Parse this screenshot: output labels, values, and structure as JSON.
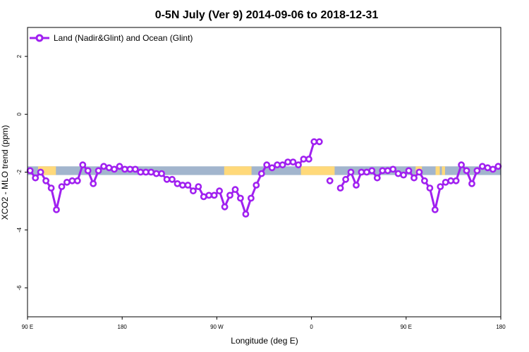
{
  "chart_data": {
    "type": "line",
    "title": "0-5N July (Ver 9)   2014-09-06 to 2018-12-31",
    "xlabel": "Longitude (deg E)",
    "ylabel": "XCO2 - MLO trend (ppm)",
    "xlim": [
      90,
      540
    ],
    "ylim": [
      -7,
      3
    ],
    "x_ticks": [
      {
        "value": 90,
        "label": "90 E"
      },
      {
        "value": 180,
        "label": "180"
      },
      {
        "value": 270,
        "label": "90 W"
      },
      {
        "value": 360,
        "label": "0"
      },
      {
        "value": 450,
        "label": "90 E"
      },
      {
        "value": 540,
        "label": "180"
      }
    ],
    "y_ticks": [
      {
        "value": 2,
        "label": "2"
      },
      {
        "value": 0,
        "label": "0"
      },
      {
        "value": -2,
        "label": "-2"
      },
      {
        "value": -4,
        "label": "-4"
      },
      {
        "value": -6,
        "label": "-6"
      }
    ],
    "legend": {
      "position": "top-left",
      "label": "Land (Nadir&Glint) and Ocean (Glint)"
    },
    "series_color": "#a020f0",
    "band": {
      "y_range": [
        -2.1,
        -1.8
      ],
      "ocean_color": "#a2b5cd",
      "land_color": "#ffd97a",
      "land_segments": [
        [
          100,
          117
        ],
        [
          277,
          303
        ],
        [
          350,
          382
        ],
        [
          459,
          465
        ],
        [
          478,
          482
        ],
        [
          484,
          487
        ]
      ]
    },
    "series": [
      {
        "name": "Land (Nadir&Glint) and Ocean (Glint)",
        "segments": [
          [
            [
              92.5,
              -1.95
            ],
            [
              97.5,
              -2.2
            ],
            [
              102.5,
              -2.0
            ],
            [
              107.5,
              -2.3
            ],
            [
              112.5,
              -2.55
            ],
            [
              117.5,
              -3.3
            ],
            [
              122.5,
              -2.5
            ],
            [
              127.5,
              -2.35
            ],
            [
              132.5,
              -2.3
            ],
            [
              137.5,
              -2.3
            ],
            [
              142.5,
              -1.75
            ],
            [
              147.5,
              -1.95
            ],
            [
              152.5,
              -2.4
            ],
            [
              157.5,
              -1.95
            ],
            [
              162.5,
              -1.8
            ],
            [
              167.5,
              -1.85
            ],
            [
              172.5,
              -1.9
            ],
            [
              177.5,
              -1.8
            ],
            [
              182.5,
              -1.9
            ],
            [
              187.5,
              -1.9
            ],
            [
              192.5,
              -1.9
            ],
            [
              197.5,
              -2.0
            ],
            [
              202.5,
              -2.0
            ],
            [
              207.5,
              -2.0
            ],
            [
              212.5,
              -2.05
            ],
            [
              217.5,
              -2.05
            ],
            [
              222.5,
              -2.25
            ],
            [
              227.5,
              -2.25
            ],
            [
              232.5,
              -2.4
            ],
            [
              237.5,
              -2.45
            ],
            [
              242.5,
              -2.45
            ],
            [
              247.5,
              -2.65
            ],
            [
              252.5,
              -2.5
            ],
            [
              257.5,
              -2.85
            ],
            [
              262.5,
              -2.8
            ],
            [
              267.5,
              -2.8
            ],
            [
              272.5,
              -2.65
            ],
            [
              277.5,
              -3.2
            ],
            [
              282.5,
              -2.8
            ],
            [
              287.5,
              -2.6
            ],
            [
              292.5,
              -2.9
            ],
            [
              297.5,
              -3.45
            ],
            [
              302.5,
              -2.9
            ],
            [
              307.5,
              -2.45
            ],
            [
              312.5,
              -2.05
            ],
            [
              317.5,
              -1.75
            ],
            [
              322.5,
              -1.85
            ],
            [
              327.5,
              -1.75
            ],
            [
              332.5,
              -1.75
            ],
            [
              337.5,
              -1.65
            ],
            [
              342.5,
              -1.65
            ],
            [
              347.5,
              -1.75
            ],
            [
              352.5,
              -1.55
            ],
            [
              357.5,
              -1.55
            ],
            [
              362.5,
              -0.95
            ],
            [
              367.5,
              -0.95
            ]
          ],
          [
            [
              377.5,
              -2.3
            ]
          ],
          [
            [
              387.5,
              -2.55
            ],
            [
              392.5,
              -2.25
            ],
            [
              397.5,
              -2.0
            ],
            [
              402.5,
              -2.45
            ],
            [
              407.5,
              -2.0
            ],
            [
              412.5,
              -2.0
            ],
            [
              417.5,
              -1.95
            ],
            [
              422.5,
              -2.2
            ],
            [
              427.5,
              -1.95
            ],
            [
              432.5,
              -1.95
            ],
            [
              437.5,
              -1.9
            ],
            [
              442.5,
              -2.05
            ],
            [
              447.5,
              -2.1
            ],
            [
              452.5,
              -1.95
            ],
            [
              457.5,
              -2.2
            ],
            [
              462.5,
              -2.0
            ],
            [
              467.5,
              -2.3
            ],
            [
              472.5,
              -2.55
            ],
            [
              477.5,
              -3.3
            ],
            [
              482.5,
              -2.5
            ],
            [
              487.5,
              -2.35
            ],
            [
              492.5,
              -2.3
            ],
            [
              497.5,
              -2.3
            ],
            [
              502.5,
              -1.75
            ],
            [
              507.5,
              -1.95
            ],
            [
              512.5,
              -2.4
            ],
            [
              517.5,
              -1.95
            ],
            [
              522.5,
              -1.8
            ],
            [
              527.5,
              -1.85
            ],
            [
              532.5,
              -1.9
            ],
            [
              537.5,
              -1.8
            ]
          ]
        ]
      }
    ]
  }
}
